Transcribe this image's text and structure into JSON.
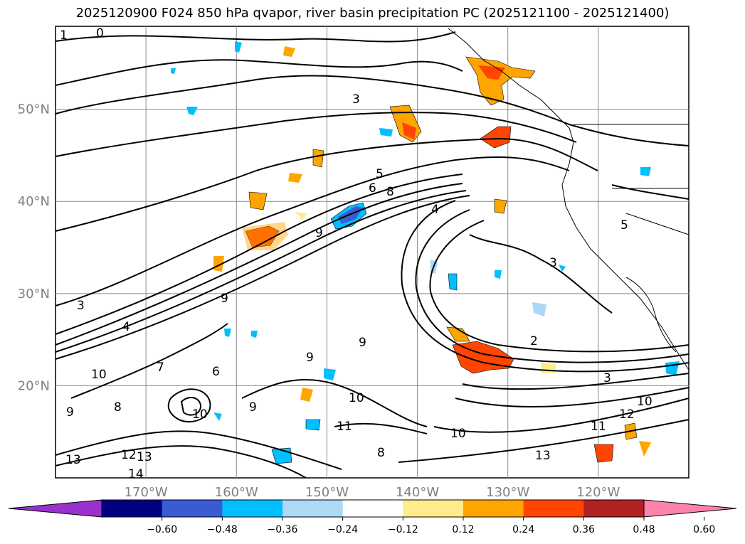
{
  "title": "2025120900 F024 850 hPa qvapor, river basin precipitation PC (2025121100 - 2025121400)",
  "lat_labels": [
    {
      "label": "50°N",
      "lat": 50
    },
    {
      "label": "40°N",
      "lat": 40
    },
    {
      "label": "30°N",
      "lat": 30
    },
    {
      "label": "20°N",
      "lat": 20
    }
  ],
  "lon_labels": [
    {
      "label": "170°W",
      "lon": -170
    },
    {
      "label": "160°W",
      "lon": -160
    },
    {
      "label": "150°W",
      "lon": -150
    },
    {
      "label": "140°W",
      "lon": -140
    },
    {
      "label": "130°W",
      "lon": -130
    },
    {
      "label": "120°W",
      "lon": -120
    }
  ],
  "extent": {
    "lon_min": -180,
    "lon_max": -110,
    "lat_min": 10,
    "lat_max": 59
  },
  "contour_labels": [
    "0",
    "1",
    "3",
    "5",
    "6",
    "8",
    "4",
    "9",
    "2",
    "10",
    "11",
    "12",
    "13",
    "14",
    "7"
  ],
  "colorbar": {
    "ticks": [
      "-0.60",
      "-0.48",
      "-0.36",
      "-0.24",
      "-0.12",
      "0.12",
      "0.24",
      "0.36",
      "0.48",
      "0.60"
    ],
    "colors": [
      "#9932cc",
      "#000080",
      "#3a5bd1",
      "#00bfff",
      "#add8f6",
      "#ffffff",
      "#ffec8b",
      "#ffa500",
      "#ff4500",
      "#b22222",
      "#ff82ab"
    ],
    "extend": "both"
  },
  "colors": {
    "gridline": "#8a8a8a",
    "axis_label": "#7f7f7f"
  }
}
